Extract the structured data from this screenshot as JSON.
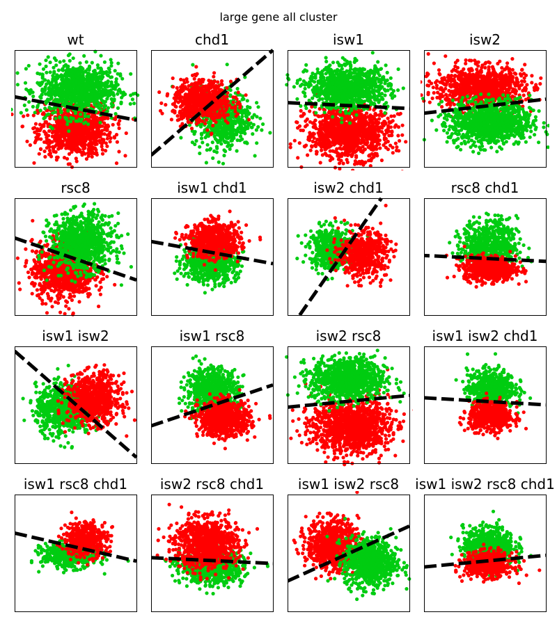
{
  "figure": {
    "suptitle": "large gene all cluster"
  },
  "colors": {
    "cluster_a": "#ff0000",
    "cluster_b": "#00cc11",
    "boundary": "#000000",
    "frame": "#000000"
  },
  "chart_data": [
    {
      "type": "scatter",
      "title": "wt",
      "boundary": {
        "style": "dashed",
        "points": [
          [
            0.0,
            0.6
          ],
          [
            1.0,
            0.4
          ]
        ]
      },
      "clusters": [
        {
          "color": "red",
          "center": [
            0.5,
            0.32
          ],
          "spread": [
            0.2,
            0.15
          ],
          "count": 900
        },
        {
          "color": "green",
          "center": [
            0.52,
            0.66
          ],
          "spread": [
            0.22,
            0.15
          ],
          "count": 900
        }
      ]
    },
    {
      "type": "scatter",
      "title": "chd1",
      "boundary": {
        "style": "dashed",
        "points": [
          [
            0.0,
            0.1
          ],
          [
            1.0,
            1.0
          ]
        ]
      },
      "clusters": [
        {
          "color": "green",
          "center": [
            0.58,
            0.42
          ],
          "spread": [
            0.16,
            0.17
          ],
          "count": 650
        },
        {
          "color": "red",
          "center": [
            0.42,
            0.56
          ],
          "spread": [
            0.16,
            0.12
          ],
          "count": 650
        }
      ]
    },
    {
      "type": "scatter",
      "title": "isw1",
      "boundary": {
        "style": "dashed",
        "points": [
          [
            0.0,
            0.55
          ],
          [
            1.0,
            0.5
          ]
        ]
      },
      "clusters": [
        {
          "color": "red",
          "center": [
            0.5,
            0.3
          ],
          "spread": [
            0.23,
            0.15
          ],
          "count": 1100
        },
        {
          "color": "green",
          "center": [
            0.5,
            0.68
          ],
          "spread": [
            0.22,
            0.12
          ],
          "count": 1000
        }
      ]
    },
    {
      "type": "scatter",
      "title": "isw2",
      "boundary": {
        "style": "dashed",
        "points": [
          [
            0.0,
            0.46
          ],
          [
            1.0,
            0.58
          ]
        ]
      },
      "clusters": [
        {
          "color": "red",
          "center": [
            0.46,
            0.68
          ],
          "spread": [
            0.24,
            0.12
          ],
          "count": 1000
        },
        {
          "color": "green",
          "center": [
            0.55,
            0.38
          ],
          "spread": [
            0.22,
            0.13
          ],
          "count": 1000
        }
      ]
    },
    {
      "type": "scatter",
      "title": "rsc8",
      "boundary": {
        "style": "dashed",
        "points": [
          [
            0.0,
            0.66
          ],
          [
            1.0,
            0.3
          ]
        ]
      },
      "clusters": [
        {
          "color": "red",
          "center": [
            0.4,
            0.38
          ],
          "spread": [
            0.17,
            0.16
          ],
          "count": 900
        },
        {
          "color": "green",
          "center": [
            0.55,
            0.62
          ],
          "spread": [
            0.17,
            0.16
          ],
          "count": 900
        }
      ]
    },
    {
      "type": "scatter",
      "title": "isw1 chd1",
      "boundary": {
        "style": "dashed",
        "points": [
          [
            0.0,
            0.63
          ],
          [
            1.0,
            0.44
          ]
        ]
      },
      "clusters": [
        {
          "color": "green",
          "center": [
            0.48,
            0.44
          ],
          "spread": [
            0.15,
            0.1
          ],
          "count": 650
        },
        {
          "color": "red",
          "center": [
            0.52,
            0.64
          ],
          "spread": [
            0.14,
            0.1
          ],
          "count": 650
        }
      ]
    },
    {
      "type": "scatter",
      "title": "isw2 chd1",
      "boundary": {
        "style": "dashed",
        "points": [
          [
            0.1,
            0.0
          ],
          [
            0.77,
            1.0
          ]
        ]
      },
      "clusters": [
        {
          "color": "green",
          "center": [
            0.36,
            0.57
          ],
          "spread": [
            0.12,
            0.12
          ],
          "count": 500
        },
        {
          "color": "red",
          "center": [
            0.62,
            0.52
          ],
          "spread": [
            0.13,
            0.13
          ],
          "count": 550
        }
      ]
    },
    {
      "type": "scatter",
      "title": "rsc8 chd1",
      "boundary": {
        "style": "dashed",
        "points": [
          [
            -0.2,
            0.52
          ],
          [
            1.0,
            0.46
          ]
        ]
      },
      "clusters": [
        {
          "color": "green",
          "center": [
            0.54,
            0.6
          ],
          "spread": [
            0.15,
            0.14
          ],
          "count": 650
        },
        {
          "color": "red",
          "center": [
            0.54,
            0.4
          ],
          "spread": [
            0.14,
            0.07
          ],
          "count": 650
        }
      ]
    },
    {
      "type": "scatter",
      "title": "isw1 isw2",
      "boundary": {
        "style": "dashed",
        "points": [
          [
            0.0,
            0.96
          ],
          [
            1.0,
            0.05
          ]
        ]
      },
      "clusters": [
        {
          "color": "green",
          "center": [
            0.4,
            0.46
          ],
          "spread": [
            0.15,
            0.14
          ],
          "count": 700
        },
        {
          "color": "red",
          "center": [
            0.65,
            0.55
          ],
          "spread": [
            0.14,
            0.14
          ],
          "count": 750
        }
      ]
    },
    {
      "type": "scatter",
      "title": "isw1 rsc8",
      "boundary": {
        "style": "dashed",
        "points": [
          [
            0.0,
            0.32
          ],
          [
            1.0,
            0.67
          ]
        ]
      },
      "clusters": [
        {
          "color": "green",
          "center": [
            0.5,
            0.62
          ],
          "spread": [
            0.14,
            0.13
          ],
          "count": 750
        },
        {
          "color": "red",
          "center": [
            0.6,
            0.38
          ],
          "spread": [
            0.14,
            0.1
          ],
          "count": 750
        }
      ]
    },
    {
      "type": "scatter",
      "title": "isw2 rsc8",
      "boundary": {
        "style": "dashed",
        "points": [
          [
            0.0,
            0.48
          ],
          [
            1.0,
            0.58
          ]
        ]
      },
      "clusters": [
        {
          "color": "red",
          "center": [
            0.52,
            0.32
          ],
          "spread": [
            0.21,
            0.15
          ],
          "count": 1200
        },
        {
          "color": "green",
          "center": [
            0.5,
            0.72
          ],
          "spread": [
            0.2,
            0.12
          ],
          "count": 950
        }
      ]
    },
    {
      "type": "scatter",
      "title": "isw1 isw2 chd1",
      "boundary": {
        "style": "dashed",
        "points": [
          [
            0.0,
            0.56
          ],
          [
            1.0,
            0.5
          ]
        ]
      },
      "clusters": [
        {
          "color": "green",
          "center": [
            0.55,
            0.64
          ],
          "spread": [
            0.13,
            0.11
          ],
          "count": 550
        },
        {
          "color": "red",
          "center": [
            0.55,
            0.4
          ],
          "spread": [
            0.12,
            0.08
          ],
          "count": 550
        }
      ]
    },
    {
      "type": "scatter",
      "title": "isw1 rsc8 chd1",
      "boundary": {
        "style": "dashed",
        "points": [
          [
            0.0,
            0.67
          ],
          [
            1.0,
            0.43
          ]
        ]
      },
      "clusters": [
        {
          "color": "green",
          "center": [
            0.45,
            0.48
          ],
          "spread": [
            0.15,
            0.07
          ],
          "count": 500
        },
        {
          "color": "red",
          "center": [
            0.58,
            0.62
          ],
          "spread": [
            0.12,
            0.1
          ],
          "count": 450
        }
      ]
    },
    {
      "type": "scatter",
      "title": "isw2 rsc8 chd1",
      "boundary": {
        "style": "dashed",
        "points": [
          [
            0.0,
            0.46
          ],
          [
            1.0,
            0.41
          ]
        ]
      },
      "clusters": [
        {
          "color": "green",
          "center": [
            0.5,
            0.38
          ],
          "spread": [
            0.17,
            0.09
          ],
          "count": 800
        },
        {
          "color": "red",
          "center": [
            0.45,
            0.58
          ],
          "spread": [
            0.17,
            0.14
          ],
          "count": 900
        }
      ]
    },
    {
      "type": "scatter",
      "title": "isw1 isw2 rsc8",
      "boundary": {
        "style": "dashed",
        "points": [
          [
            0.0,
            0.26
          ],
          [
            1.0,
            0.73
          ]
        ]
      },
      "clusters": [
        {
          "color": "red",
          "center": [
            0.37,
            0.57
          ],
          "spread": [
            0.14,
            0.14
          ],
          "count": 800
        },
        {
          "color": "green",
          "center": [
            0.68,
            0.42
          ],
          "spread": [
            0.14,
            0.14
          ],
          "count": 800
        }
      ]
    },
    {
      "type": "scatter",
      "title": "isw1 isw2 rsc8 chd1",
      "boundary": {
        "style": "dashed",
        "points": [
          [
            0.0,
            0.38
          ],
          [
            1.0,
            0.48
          ]
        ]
      },
      "clusters": [
        {
          "color": "green",
          "center": [
            0.53,
            0.56
          ],
          "spread": [
            0.14,
            0.11
          ],
          "count": 650
        },
        {
          "color": "red",
          "center": [
            0.53,
            0.4
          ],
          "spread": [
            0.13,
            0.07
          ],
          "count": 600
        }
      ]
    }
  ]
}
